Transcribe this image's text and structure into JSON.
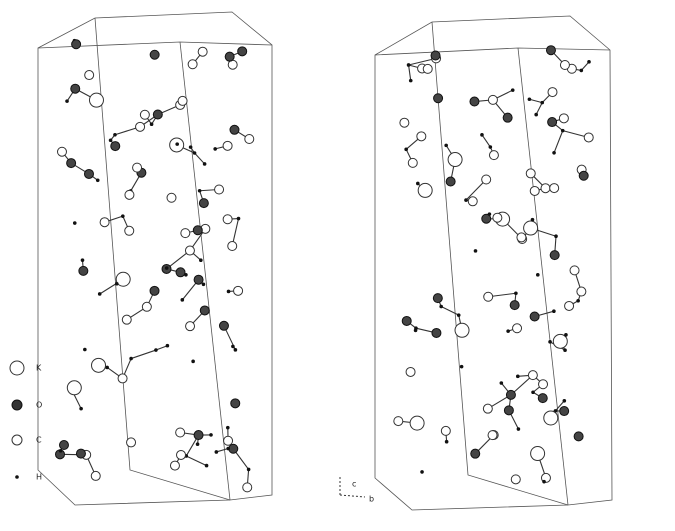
{
  "legend": [
    {
      "label": "K"
    },
    {
      "label": "O"
    },
    {
      "label": "C"
    },
    {
      "label": "H"
    }
  ],
  "axes": {
    "c": "c",
    "b": "b"
  }
}
